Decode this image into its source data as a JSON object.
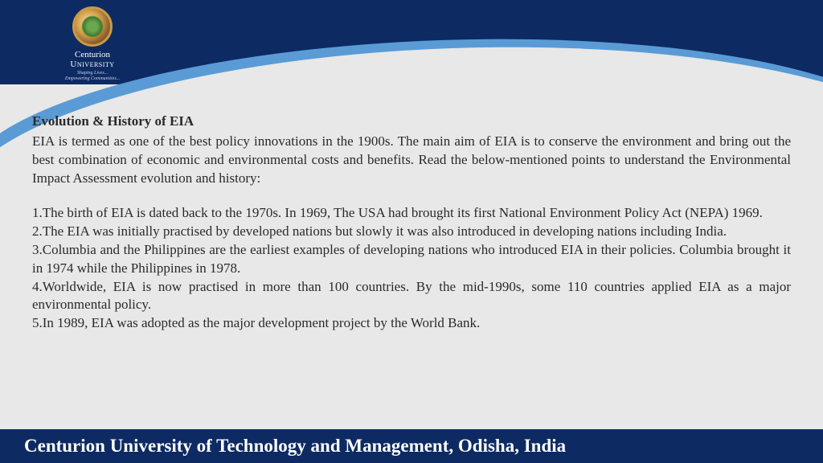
{
  "colors": {
    "header_bg": "#0d2a63",
    "swoosh_light": "#5a9bd5",
    "page_bg": "#e8e8e8",
    "text": "#2a2a2a",
    "footer_text": "#ffffff"
  },
  "logo": {
    "name_line1": "Centurion",
    "name_line2": "University",
    "tagline1": "Shaping Lives...",
    "tagline2": "Empowering Communities..."
  },
  "slide": {
    "title": "Evolution & History of EIA",
    "intro": "EIA is termed as one of the best policy innovations in the 1900s. The main aim of EIA is to conserve the environment and bring out the best combination of economic and environmental costs and benefits. Read the below-mentioned points to understand the Environmental Impact Assessment evolution and history:",
    "points": [
      "1.The birth of EIA is dated back to the 1970s. In 1969, The USA had brought its first National Environment Policy Act (NEPA) 1969.",
      "2.The EIA was initially practised by developed nations but slowly it was also introduced in developing nations including India.",
      "3.Columbia and the Philippines are the earliest examples of developing nations who introduced EIA in their policies. Columbia brought it in 1974 while the Philippines in 1978.",
      "4.Worldwide, EIA is now practised in more than 100 countries. By the mid-1990s, some 110 countries applied EIA as a major environmental policy.",
      "5.In 1989, EIA was adopted as the major development project by the World Bank."
    ]
  },
  "footer": {
    "text": "Centurion University of Technology and Management, Odisha, India"
  }
}
